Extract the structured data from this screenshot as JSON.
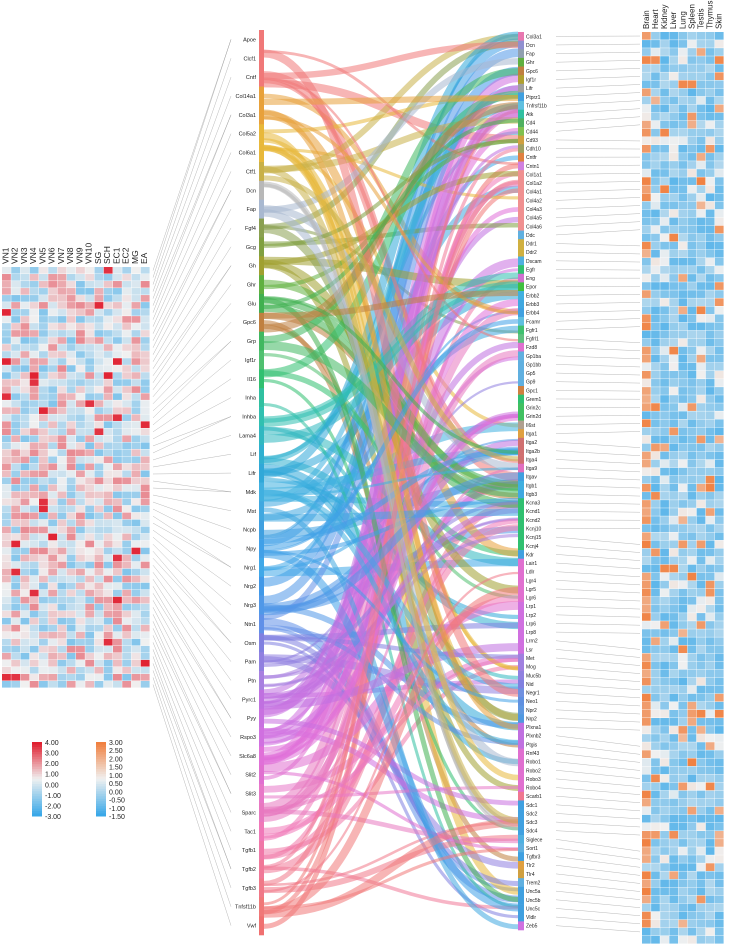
{
  "left_heatmap": {
    "columns": [
      "VN1",
      "VN2",
      "VN3",
      "VN4",
      "VN5",
      "VN6",
      "VN7",
      "VN8",
      "VN9",
      "VN10",
      "SG",
      "SCH",
      "EC1",
      "EC2",
      "MG",
      "EA"
    ],
    "row_count": 60,
    "colorbar": {
      "ticks": [
        "4.00",
        "3.00",
        "2.00",
        "1.00",
        "0.00",
        "-1.00",
        "-2.00",
        "-3.00"
      ]
    }
  },
  "right_heatmap": {
    "columns": [
      "Brain",
      "Heart",
      "Kidney",
      "Liver",
      "Lung",
      "Spleen",
      "Testis",
      "Thymus",
      "Skin"
    ],
    "row_count": 113,
    "colorbar": {
      "ticks": [
        "3.00",
        "2.50",
        "2.00",
        "1.50",
        "1.00",
        "0.50",
        "0.00",
        "-0.50",
        "-1.00",
        "-1.50"
      ]
    }
  },
  "ligands": [
    {
      "label": "Apoe",
      "color": "#f07878"
    },
    {
      "label": "Clcf1",
      "color": "#f07878"
    },
    {
      "label": "Cntf",
      "color": "#f07878"
    },
    {
      "label": "Col14a1",
      "color": "#e8a13a"
    },
    {
      "label": "Col3a1",
      "color": "#e8a13a"
    },
    {
      "label": "Col5a2",
      "color": "#e8b83a"
    },
    {
      "label": "Col6a1",
      "color": "#e8b83a"
    },
    {
      "label": "Ctf1",
      "color": "#c8b048"
    },
    {
      "label": "Dcn",
      "color": "#b8b8b8"
    },
    {
      "label": "Fap",
      "color": "#a8b8d0"
    },
    {
      "label": "Fgf4",
      "color": "#8aa050"
    },
    {
      "label": "Gcg",
      "color": "#80a040"
    },
    {
      "label": "Gh",
      "color": "#a0a030"
    },
    {
      "label": "Ghr",
      "color": "#60b040"
    },
    {
      "label": "Glu",
      "color": "#40b050"
    },
    {
      "label": "Gpc6",
      "color": "#c08040"
    },
    {
      "label": "Grp",
      "color": "#40b860"
    },
    {
      "label": "Igf1r",
      "color": "#50c070"
    },
    {
      "label": "Il16",
      "color": "#30c070"
    },
    {
      "label": "Inha",
      "color": "#30c0a0"
    },
    {
      "label": "Inhba",
      "color": "#30c0b0"
    },
    {
      "label": "Lama4",
      "color": "#30b8c0"
    },
    {
      "label": "Lif",
      "color": "#30b0d0"
    },
    {
      "label": "Lifr",
      "color": "#30a8d8"
    },
    {
      "label": "Mdk",
      "color": "#40b0e0"
    },
    {
      "label": "Mst",
      "color": "#40a8e0"
    },
    {
      "label": "Ncpb",
      "color": "#40a0e0"
    },
    {
      "label": "Npy",
      "color": "#40a0e8"
    },
    {
      "label": "Nrg1",
      "color": "#40a8e8"
    },
    {
      "label": "Nrg2",
      "color": "#4098e8"
    },
    {
      "label": "Nrg3",
      "color": "#5098e8"
    },
    {
      "label": "Ntn1",
      "color": "#6090e8"
    },
    {
      "label": "Osm",
      "color": "#8080e0"
    },
    {
      "label": "Pam",
      "color": "#9080e0"
    },
    {
      "label": "Ptn",
      "color": "#a880e0"
    },
    {
      "label": "Pyrc1",
      "color": "#c070e0"
    },
    {
      "label": "Pyy",
      "color": "#c870e0"
    },
    {
      "label": "Rspo3",
      "color": "#d070e0"
    },
    {
      "label": "Slc6a8",
      "color": "#e070d8"
    },
    {
      "label": "Slit2",
      "color": "#e070d0"
    },
    {
      "label": "Slit3",
      "color": "#e878c8"
    },
    {
      "label": "Sparc",
      "color": "#e878c0"
    },
    {
      "label": "Tac1",
      "color": "#f078b8"
    },
    {
      "label": "Tgfb1",
      "color": "#f078a8"
    },
    {
      "label": "Tgfb2",
      "color": "#f07898"
    },
    {
      "label": "Tgfb3",
      "color": "#f07888"
    },
    {
      "label": "Tnfsf11b",
      "color": "#f07878"
    },
    {
      "label": "Vwf",
      "color": "#f07070"
    }
  ],
  "receptors": [
    {
      "label": "Col3a1",
      "color": "#e878b0"
    },
    {
      "label": "Dcn",
      "color": "#9090d0"
    },
    {
      "label": "Fap",
      "color": "#90a0b0"
    },
    {
      "label": "Ghr",
      "color": "#60b040"
    },
    {
      "label": "Gpc6",
      "color": "#c08040"
    },
    {
      "label": "Igf1r",
      "color": "#b0a030"
    },
    {
      "label": "Lifr",
      "color": "#a0a0a0"
    },
    {
      "label": "Ptprz1",
      "color": "#40a0e0"
    },
    {
      "label": "Tnfrsf11b",
      "color": "#60c0e0"
    },
    {
      "label": "Atk",
      "color": "#30c0a0"
    },
    {
      "label": "Cd4",
      "color": "#50b060"
    },
    {
      "label": "Cd44",
      "color": "#80c050"
    },
    {
      "label": "Cd93",
      "color": "#d0a040"
    },
    {
      "label": "Cdh10",
      "color": "#a0a060"
    },
    {
      "label": "Cntfr",
      "color": "#e08040"
    },
    {
      "label": "Cntn1",
      "color": "#d080e0"
    },
    {
      "label": "Col1a1",
      "color": "#f09090"
    },
    {
      "label": "Col1a2",
      "color": "#f09090"
    },
    {
      "label": "Col4a1",
      "color": "#f09090"
    },
    {
      "label": "Col4a2",
      "color": "#f09090"
    },
    {
      "label": "Col4a3",
      "color": "#f09090"
    },
    {
      "label": "Col4a5",
      "color": "#f09090"
    },
    {
      "label": "Col4a6",
      "color": "#f09090"
    },
    {
      "label": "Ddc",
      "color": "#60b0e0"
    },
    {
      "label": "Ddr1",
      "color": "#d0b040"
    },
    {
      "label": "Ddr2",
      "color": "#d0b040"
    },
    {
      "label": "Dscam",
      "color": "#50b0e0"
    },
    {
      "label": "Egfr",
      "color": "#30c070"
    },
    {
      "label": "Eng",
      "color": "#d070d0"
    },
    {
      "label": "Epor",
      "color": "#40c040"
    },
    {
      "label": "Erbb2",
      "color": "#40b0e0"
    },
    {
      "label": "Erbb3",
      "color": "#40a8e0"
    },
    {
      "label": "Erbb4",
      "color": "#40a0e0"
    },
    {
      "label": "Fcamr",
      "color": "#60c0e0"
    },
    {
      "label": "Fgfr1",
      "color": "#40c070"
    },
    {
      "label": "Fgfrl1",
      "color": "#60c080"
    },
    {
      "label": "Fzd8",
      "color": "#e070d0"
    },
    {
      "label": "Gp1ba",
      "color": "#60b0e0"
    },
    {
      "label": "Gp1bb",
      "color": "#60b0e0"
    },
    {
      "label": "Gp5",
      "color": "#60b0e0"
    },
    {
      "label": "Gp9",
      "color": "#60b0e0"
    },
    {
      "label": "Gpc1",
      "color": "#d08040"
    },
    {
      "label": "Grem1",
      "color": "#30c070"
    },
    {
      "label": "Grin2c",
      "color": "#40c060"
    },
    {
      "label": "Grin2d",
      "color": "#40c060"
    },
    {
      "label": "Il6st",
      "color": "#b0a090"
    },
    {
      "label": "Itga1",
      "color": "#e0a040"
    },
    {
      "label": "Itga2",
      "color": "#d07070"
    },
    {
      "label": "Itga2b",
      "color": "#d07070"
    },
    {
      "label": "Itga4",
      "color": "#d07070"
    },
    {
      "label": "Itga9",
      "color": "#e070c0"
    },
    {
      "label": "Itgav",
      "color": "#40a0e0"
    },
    {
      "label": "Itgb1",
      "color": "#40b0e0"
    },
    {
      "label": "Itgb3",
      "color": "#40a8e0"
    },
    {
      "label": "Kcna3",
      "color": "#30c070"
    },
    {
      "label": "Kcnd1",
      "color": "#30c070"
    },
    {
      "label": "Kcnd2",
      "color": "#30c070"
    },
    {
      "label": "Kcnj10",
      "color": "#30c070"
    },
    {
      "label": "Kcnj15",
      "color": "#30c070"
    },
    {
      "label": "Kcnj4",
      "color": "#30c070"
    },
    {
      "label": "Kdr",
      "color": "#40a0e0"
    },
    {
      "label": "Lair1",
      "color": "#e070d0"
    },
    {
      "label": "Ldlr",
      "color": "#e070d0"
    },
    {
      "label": "Lgr4",
      "color": "#e070d0"
    },
    {
      "label": "Lgr5",
      "color": "#e070d0"
    },
    {
      "label": "Lgr6",
      "color": "#e070d0"
    },
    {
      "label": "Lrp1",
      "color": "#d070e0"
    },
    {
      "label": "Lrp2",
      "color": "#d070e0"
    },
    {
      "label": "Lrp6",
      "color": "#d070e0"
    },
    {
      "label": "Lrp8",
      "color": "#d070e0"
    },
    {
      "label": "Lrrn2",
      "color": "#d070e0"
    },
    {
      "label": "Lsr",
      "color": "#d070e0"
    },
    {
      "label": "Met",
      "color": "#a080e0"
    },
    {
      "label": "Mog",
      "color": "#a080e0"
    },
    {
      "label": "Muc5b",
      "color": "#9080e0"
    },
    {
      "label": "Nid",
      "color": "#8080e0"
    },
    {
      "label": "Negr1",
      "color": "#7090e0"
    },
    {
      "label": "Neo1",
      "color": "#6090e0"
    },
    {
      "label": "Npr2",
      "color": "#6098e0"
    },
    {
      "label": "Nrp2",
      "color": "#5098e0"
    },
    {
      "label": "Plxna1",
      "color": "#c070e0"
    },
    {
      "label": "Plxnb2",
      "color": "#c070e0"
    },
    {
      "label": "Ptgis",
      "color": "#c070e0"
    },
    {
      "label": "Rnf43",
      "color": "#e070d0"
    },
    {
      "label": "Robo1",
      "color": "#e070d0"
    },
    {
      "label": "Robo2",
      "color": "#e070d0"
    },
    {
      "label": "Robo3",
      "color": "#e070d0"
    },
    {
      "label": "Robo4",
      "color": "#e070d0"
    },
    {
      "label": "Scarb1",
      "color": "#f07890"
    },
    {
      "label": "Sdc1",
      "color": "#40a0e0"
    },
    {
      "label": "Sdc2",
      "color": "#40a0e0"
    },
    {
      "label": "Sdc3",
      "color": "#40a0e0"
    },
    {
      "label": "Sdc4",
      "color": "#40a0e0"
    },
    {
      "label": "Siglece",
      "color": "#50b0e0"
    },
    {
      "label": "Sort1",
      "color": "#60b0e0"
    },
    {
      "label": "Tgfbr3",
      "color": "#40a0e0"
    },
    {
      "label": "Tlr2",
      "color": "#e0a040"
    },
    {
      "label": "Tlr4",
      "color": "#d0a040"
    },
    {
      "label": "Trem2",
      "color": "#60b0e0"
    },
    {
      "label": "Unc5a",
      "color": "#40a0e0"
    },
    {
      "label": "Unc5b",
      "color": "#40a0e0"
    },
    {
      "label": "Unc5c",
      "color": "#40a0e0"
    },
    {
      "label": "Vldlr",
      "color": "#40a0e0"
    },
    {
      "label": "Zeb5",
      "color": "#d070e0"
    }
  ],
  "colors": {
    "cold": "#3aa8e8",
    "neutral": "#f0f0f0",
    "hot_left": "#e02030",
    "hot_right": "#f08040",
    "ligand_block_top": "#f07878",
    "guide_line": "#888888"
  }
}
